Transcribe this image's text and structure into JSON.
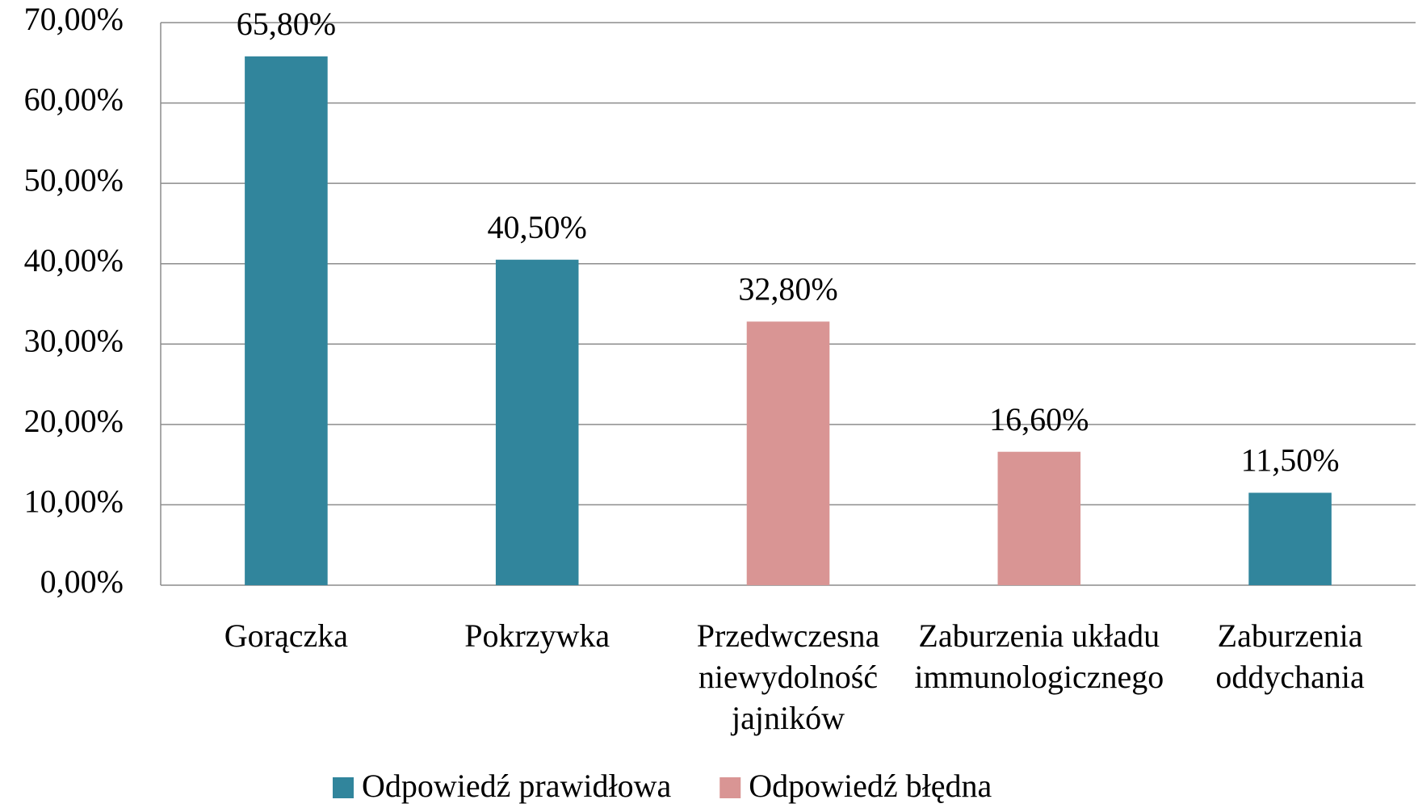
{
  "chart_data": {
    "type": "bar",
    "categories": [
      "Gorączka",
      "Pokrzywka",
      "Przedwczesna\nniewydolność\njajników",
      "Zaburzenia układu\nimmunologicznego",
      "Zaburzenia\noddychania"
    ],
    "series": [
      {
        "name": "Odpowiedź prawidłowa",
        "color": "#31859c",
        "values": [
          65.8,
          40.5,
          null,
          null,
          11.5
        ],
        "value_labels": [
          "65,80%",
          "40,50%",
          null,
          null,
          "11,50%"
        ]
      },
      {
        "name": "Odpowiedź błędna",
        "color": "#d99594",
        "values": [
          null,
          null,
          32.8,
          16.6,
          null
        ],
        "value_labels": [
          null,
          null,
          "32,80%",
          "16,60%",
          null
        ]
      }
    ],
    "ylim": [
      0,
      70
    ],
    "yticks": [
      {
        "value": 0,
        "label": "0,00%"
      },
      {
        "value": 10,
        "label": "10,00%"
      },
      {
        "value": 20,
        "label": "20,00%"
      },
      {
        "value": 30,
        "label": "30,00%"
      },
      {
        "value": 40,
        "label": "40,00%"
      },
      {
        "value": 50,
        "label": "50,00%"
      },
      {
        "value": 60,
        "label": "60,00%"
      },
      {
        "value": 70,
        "label": "70,00%"
      }
    ],
    "grid": true,
    "legend": "bottom"
  }
}
